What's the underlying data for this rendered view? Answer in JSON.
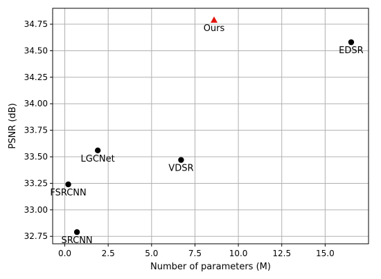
{
  "chart_data": {
    "type": "scatter",
    "xlabel": "Number of parameters (M)",
    "ylabel": "PSNR (dB)",
    "xlim": [
      -0.7,
      17.5
    ],
    "ylim": [
      32.68,
      34.9
    ],
    "xticks": [
      0.0,
      2.5,
      5.0,
      7.5,
      10.0,
      12.5,
      15.0
    ],
    "xtick_labels": [
      "0.0",
      "2.5",
      "5.0",
      "7.5",
      "10.0",
      "12.5",
      "15.0"
    ],
    "yticks": [
      32.75,
      33.0,
      33.25,
      33.5,
      33.75,
      34.0,
      34.25,
      34.5,
      34.75
    ],
    "ytick_labels": [
      "32.75",
      "33.00",
      "33.25",
      "33.50",
      "33.75",
      "34.00",
      "34.25",
      "34.50",
      "34.75"
    ],
    "grid": true,
    "points": [
      {
        "label": "Ours",
        "x": 8.6,
        "y": 34.79,
        "marker": "triangle",
        "color": "#e3120b"
      },
      {
        "label": "EDSR",
        "x": 16.5,
        "y": 34.58,
        "marker": "circle",
        "color": "#000000"
      },
      {
        "label": "LGCNet",
        "x": 1.9,
        "y": 33.56,
        "marker": "circle",
        "color": "#000000"
      },
      {
        "label": "VDSR",
        "x": 6.7,
        "y": 33.47,
        "marker": "circle",
        "color": "#000000"
      },
      {
        "label": "FSRCNN",
        "x": 0.2,
        "y": 33.24,
        "marker": "circle",
        "color": "#000000"
      },
      {
        "label": "SRCNN",
        "x": 0.7,
        "y": 32.79,
        "marker": "circle",
        "color": "#000000"
      }
    ]
  }
}
